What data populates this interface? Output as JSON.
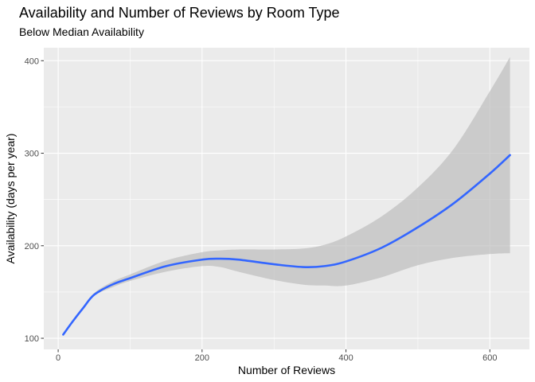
{
  "chart_data": {
    "type": "line",
    "title": "Availability and Number of Reviews by Room Type",
    "subtitle": "Below Median Availability",
    "xlabel": "Number of Reviews",
    "ylabel": "Availability (days per year)",
    "xlim": [
      -20,
      655
    ],
    "ylim": [
      88,
      414
    ],
    "x_ticks": [
      0,
      200,
      400,
      600
    ],
    "y_ticks": [
      100,
      200,
      300,
      400
    ],
    "grid": true,
    "legend": "none",
    "colors": {
      "panel": "#ebebeb",
      "grid": "#ffffff",
      "line": "#3366ff",
      "ribbon": "#bebebe"
    },
    "series": [
      {
        "smooth": true,
        "points": [
          {
            "x": 7,
            "y": 104,
            "lo": 104,
            "hi": 104
          },
          {
            "x": 20,
            "y": 118,
            "lo": 117,
            "hi": 119
          },
          {
            "x": 35,
            "y": 133,
            "lo": 132,
            "hi": 134
          },
          {
            "x": 50,
            "y": 147,
            "lo": 146,
            "hi": 149
          },
          {
            "x": 75,
            "y": 158,
            "lo": 155,
            "hi": 161
          },
          {
            "x": 100,
            "y": 165,
            "lo": 162,
            "hi": 169
          },
          {
            "x": 150,
            "y": 178,
            "lo": 172,
            "hi": 184
          },
          {
            "x": 200,
            "y": 185,
            "lo": 178,
            "hi": 193
          },
          {
            "x": 225,
            "y": 186,
            "lo": 177,
            "hi": 195
          },
          {
            "x": 250,
            "y": 185,
            "lo": 172,
            "hi": 196
          },
          {
            "x": 300,
            "y": 180,
            "lo": 163,
            "hi": 196
          },
          {
            "x": 340,
            "y": 177,
            "lo": 158,
            "hi": 197
          },
          {
            "x": 370,
            "y": 178,
            "lo": 157,
            "hi": 201
          },
          {
            "x": 400,
            "y": 183,
            "lo": 157,
            "hi": 210
          },
          {
            "x": 450,
            "y": 198,
            "lo": 166,
            "hi": 232
          },
          {
            "x": 500,
            "y": 220,
            "lo": 179,
            "hi": 263
          },
          {
            "x": 550,
            "y": 246,
            "lo": 187,
            "hi": 305
          },
          {
            "x": 600,
            "y": 278,
            "lo": 191,
            "hi": 367
          },
          {
            "x": 628,
            "y": 298,
            "lo": 192,
            "hi": 404
          }
        ]
      }
    ]
  }
}
